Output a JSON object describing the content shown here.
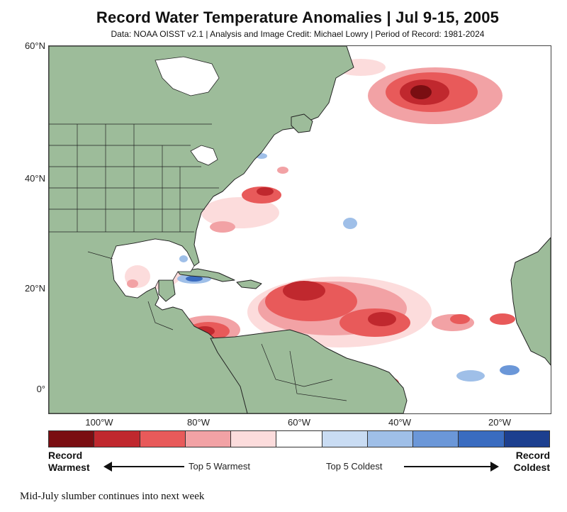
{
  "title": "Record Water Temperature Anomalies | Jul 9-15, 2005",
  "subtitle": "Data: NOAA OISST v2.1 | Analysis and Image Credit: Michael Lowry | Period of Record: 1981-2024",
  "map": {
    "lat_labels": [
      "60°N",
      "40°N",
      "20°N",
      "0°"
    ],
    "lon_labels": [
      "100°W",
      "80°W",
      "60°W",
      "40°W",
      "20°W"
    ],
    "land_color": "#9dbc9a",
    "ocean_color": "#ffffff"
  },
  "legend": {
    "colors": [
      "#7a0e12",
      "#c0282e",
      "#e85a5a",
      "#f2a2a5",
      "#fcdcdc",
      "#ffffff",
      "#c9dcf3",
      "#9fbfe8",
      "#6b97d8",
      "#3a6cc0",
      "#1c3f8f"
    ],
    "left_label_line1": "Record",
    "left_label_line2": "Warmest",
    "right_label_line1": "Record",
    "right_label_line2": "Coldest",
    "mid_left": "Top 5 Warmest",
    "mid_right": "Top 5 Coldest"
  },
  "caption": "Mid-July slumber continues into next week"
}
